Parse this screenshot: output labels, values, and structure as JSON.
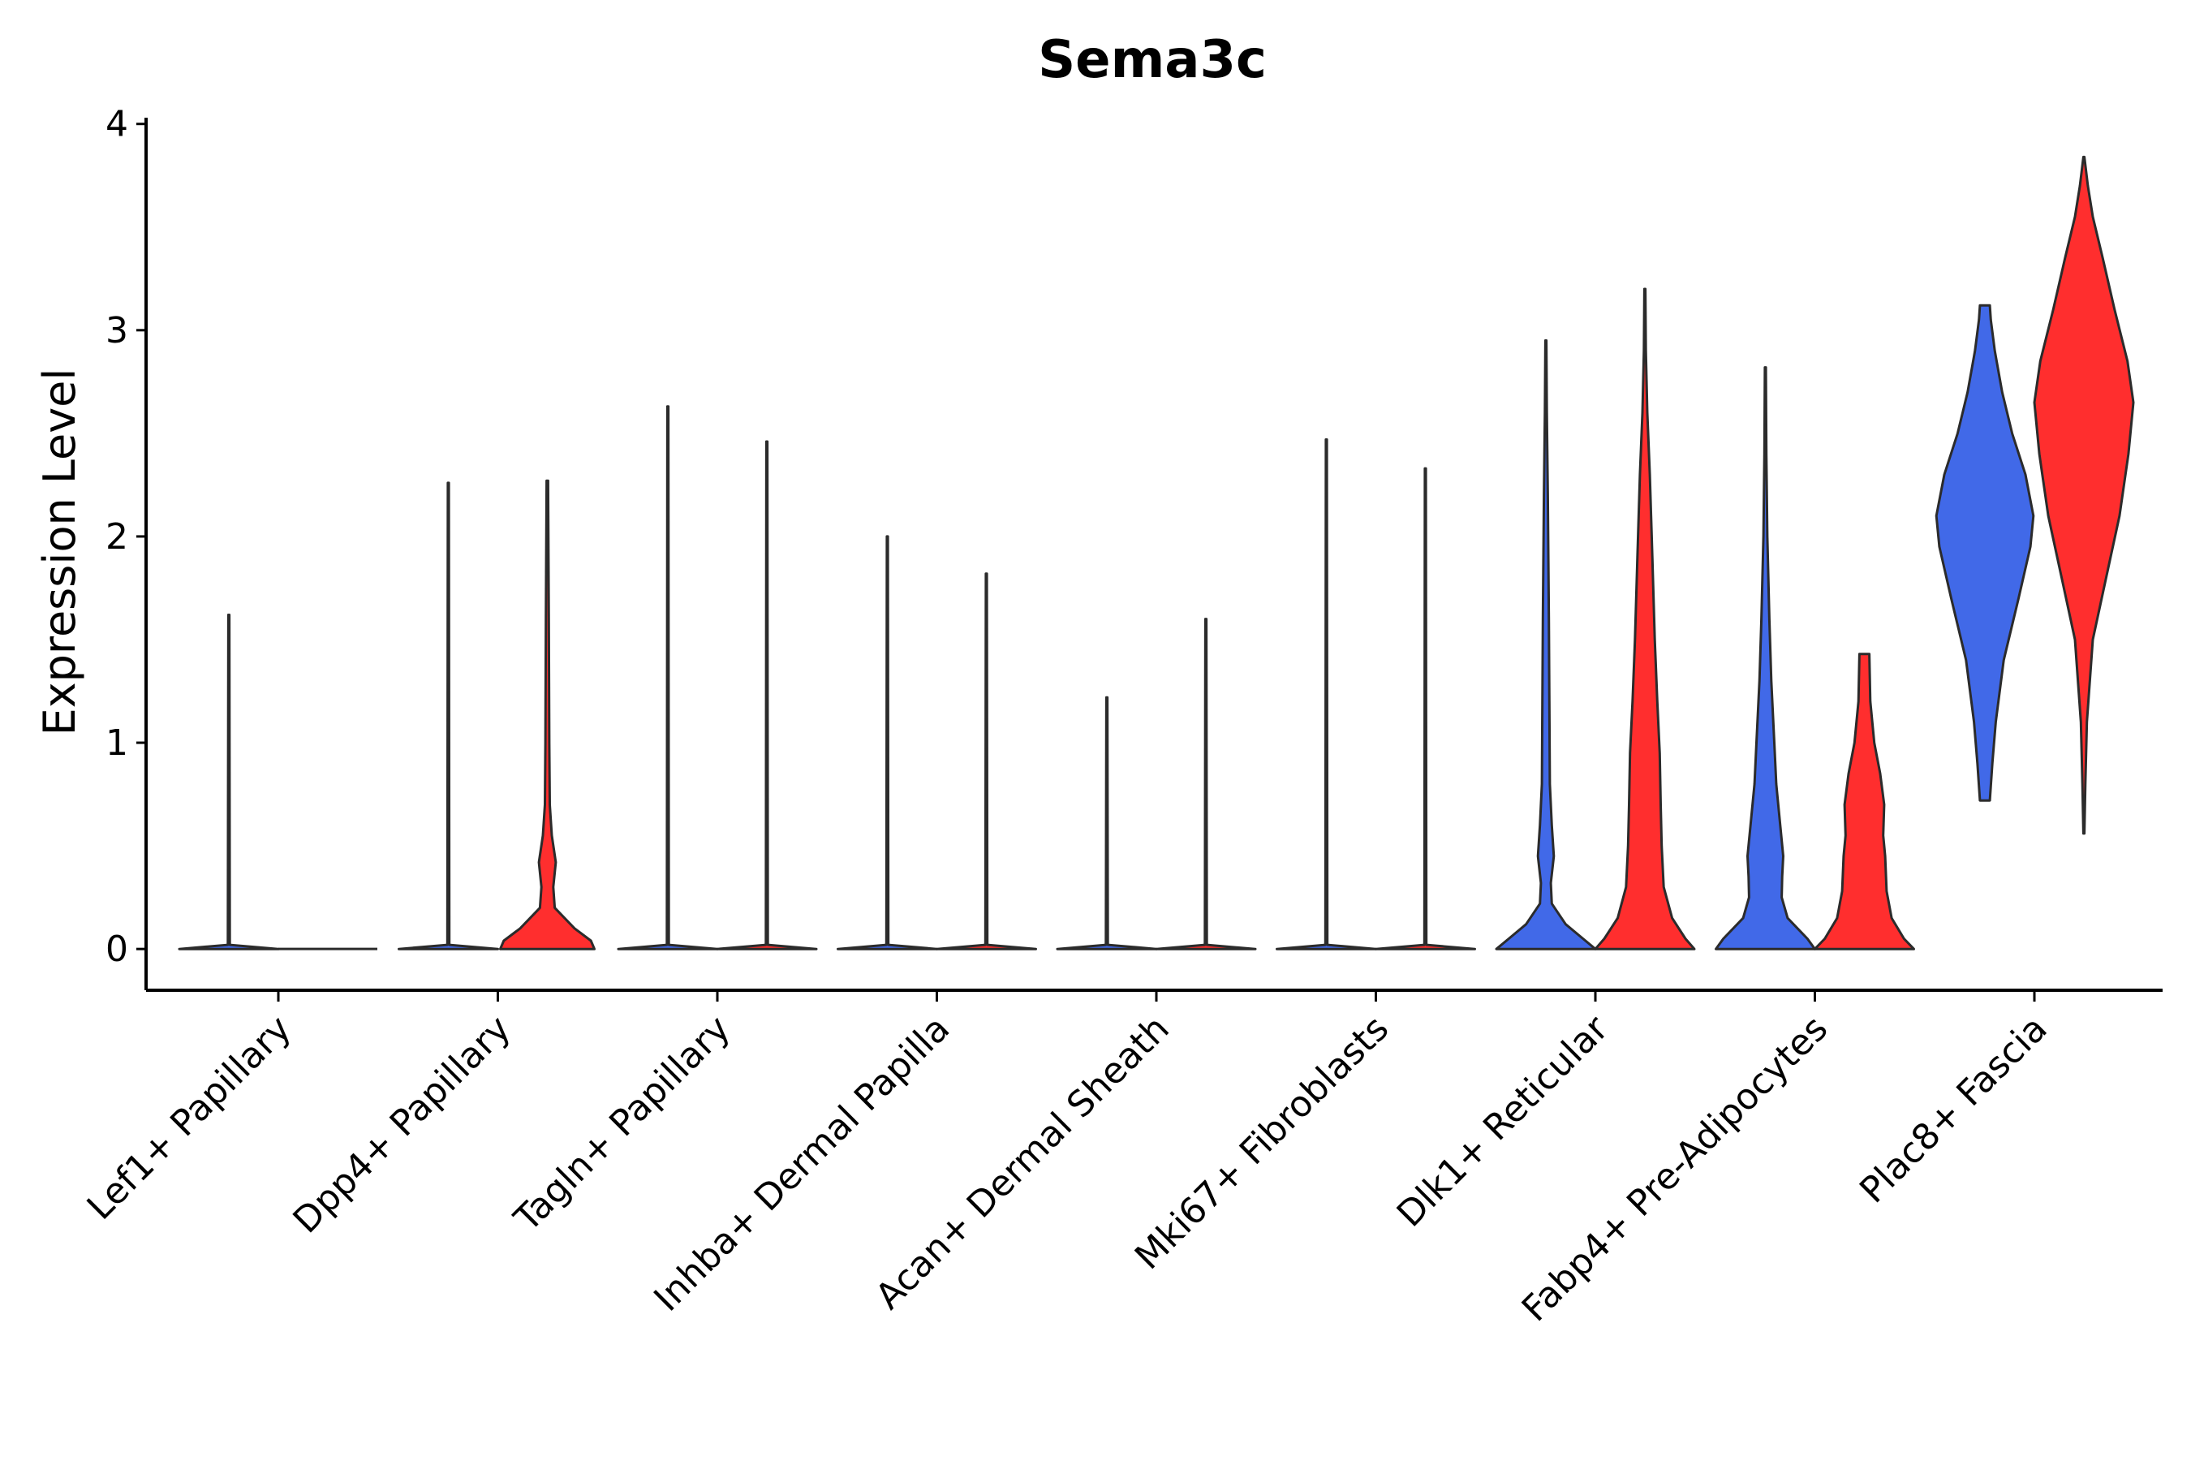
{
  "chart_data": {
    "type": "violin",
    "title": "Sema3c",
    "xlabel": "",
    "ylabel": "Expression Level",
    "ylim": [
      -0.2,
      4.05
    ],
    "yticks": [
      0,
      1,
      2,
      3,
      4
    ],
    "legend": "none",
    "colors": {
      "group1": "#4169E8",
      "group2": "#FF2E2E",
      "outline": "#2b2b2b"
    },
    "categories": [
      "Lef1+ Papillary",
      "Dpp4+ Papillary",
      "Tagln+ Papillary",
      "Inhba+ Dermal Papilla",
      "Acan+ Dermal Sheath",
      "Mki67+ Fibroblasts",
      "Dlk1+ Reticular",
      "Fabp4+ Pre-Adipocytes",
      "Plac8+ Fascia"
    ],
    "violins": [
      {
        "category": "Lef1+ Papillary",
        "group": "group1",
        "min": 0,
        "max": 1.62,
        "profile": [
          [
            0,
            1
          ],
          [
            0.02,
            0.02
          ],
          [
            1.62,
            0.01
          ]
        ]
      },
      {
        "category": "Lef1+ Papillary",
        "group": "group2",
        "min": 0,
        "max": 0,
        "profile": [
          [
            0,
            1
          ]
        ]
      },
      {
        "category": "Dpp4+ Papillary",
        "group": "group1",
        "min": 0,
        "max": 2.26,
        "profile": [
          [
            0,
            1
          ],
          [
            0.02,
            0.02
          ],
          [
            2.26,
            0.01
          ]
        ]
      },
      {
        "category": "Dpp4+ Papillary",
        "group": "group2",
        "min": 0,
        "max": 2.27,
        "profile": [
          [
            0,
            0.95
          ],
          [
            0.04,
            0.88
          ],
          [
            0.1,
            0.55
          ],
          [
            0.2,
            0.15
          ],
          [
            0.3,
            0.12
          ],
          [
            0.42,
            0.17
          ],
          [
            0.55,
            0.09
          ],
          [
            0.7,
            0.05
          ],
          [
            1.0,
            0.04
          ],
          [
            1.6,
            0.03
          ],
          [
            2.27,
            0.015
          ]
        ]
      },
      {
        "category": "Tagln+ Papillary",
        "group": "group1",
        "min": 0,
        "max": 2.63,
        "profile": [
          [
            0,
            1
          ],
          [
            0.02,
            0.02
          ],
          [
            2.63,
            0.01
          ]
        ]
      },
      {
        "category": "Tagln+ Papillary",
        "group": "group2",
        "min": 0,
        "max": 2.46,
        "profile": [
          [
            0,
            1
          ],
          [
            0.02,
            0.02
          ],
          [
            2.46,
            0.01
          ]
        ]
      },
      {
        "category": "Inhba+ Dermal Papilla",
        "group": "group1",
        "min": 0,
        "max": 2.0,
        "profile": [
          [
            0,
            1
          ],
          [
            0.02,
            0.02
          ],
          [
            2.0,
            0.01
          ]
        ]
      },
      {
        "category": "Inhba+ Dermal Papilla",
        "group": "group2",
        "min": 0,
        "max": 1.82,
        "profile": [
          [
            0,
            1
          ],
          [
            0.02,
            0.02
          ],
          [
            1.82,
            0.01
          ]
        ]
      },
      {
        "category": "Acan+ Dermal Sheath",
        "group": "group1",
        "min": 0,
        "max": 1.22,
        "profile": [
          [
            0,
            1
          ],
          [
            0.02,
            0.02
          ],
          [
            1.22,
            0.01
          ]
        ]
      },
      {
        "category": "Acan+ Dermal Sheath",
        "group": "group2",
        "min": 0,
        "max": 1.6,
        "profile": [
          [
            0,
            1
          ],
          [
            0.02,
            0.02
          ],
          [
            1.6,
            0.01
          ]
        ]
      },
      {
        "category": "Mki67+ Fibroblasts",
        "group": "group1",
        "min": 0,
        "max": 2.47,
        "profile": [
          [
            0,
            1
          ],
          [
            0.02,
            0.02
          ],
          [
            2.47,
            0.01
          ]
        ]
      },
      {
        "category": "Mki67+ Fibroblasts",
        "group": "group2",
        "min": 0,
        "max": 2.33,
        "profile": [
          [
            0,
            1
          ],
          [
            0.02,
            0.02
          ],
          [
            2.33,
            0.01
          ]
        ]
      },
      {
        "category": "Dlk1+ Reticular",
        "group": "group1",
        "min": 0,
        "max": 2.95,
        "profile": [
          [
            0,
            1
          ],
          [
            0.05,
            0.75
          ],
          [
            0.12,
            0.4
          ],
          [
            0.22,
            0.12
          ],
          [
            0.32,
            0.1
          ],
          [
            0.45,
            0.16
          ],
          [
            0.6,
            0.12
          ],
          [
            0.8,
            0.08
          ],
          [
            1.2,
            0.07
          ],
          [
            1.6,
            0.06
          ],
          [
            2.2,
            0.04
          ],
          [
            2.6,
            0.02
          ],
          [
            2.95,
            0.01
          ]
        ]
      },
      {
        "category": "Dlk1+ Reticular",
        "group": "group2",
        "min": 0,
        "max": 3.2,
        "profile": [
          [
            0,
            1
          ],
          [
            0.05,
            0.82
          ],
          [
            0.15,
            0.55
          ],
          [
            0.3,
            0.38
          ],
          [
            0.5,
            0.34
          ],
          [
            0.7,
            0.32
          ],
          [
            0.95,
            0.3
          ],
          [
            1.2,
            0.25
          ],
          [
            1.5,
            0.2
          ],
          [
            1.9,
            0.15
          ],
          [
            2.3,
            0.1
          ],
          [
            2.6,
            0.05
          ],
          [
            2.9,
            0.02
          ],
          [
            3.2,
            0.01
          ]
        ]
      },
      {
        "category": "Fabp4+ Pre-Adipocytes",
        "group": "group1",
        "min": 0,
        "max": 2.82,
        "profile": [
          [
            0,
            1
          ],
          [
            0.05,
            0.85
          ],
          [
            0.15,
            0.45
          ],
          [
            0.25,
            0.33
          ],
          [
            0.35,
            0.34
          ],
          [
            0.45,
            0.36
          ],
          [
            0.6,
            0.3
          ],
          [
            0.8,
            0.22
          ],
          [
            1.0,
            0.18
          ],
          [
            1.3,
            0.12
          ],
          [
            1.6,
            0.08
          ],
          [
            2.0,
            0.04
          ],
          [
            2.4,
            0.02
          ],
          [
            2.82,
            0.01
          ]
        ]
      },
      {
        "category": "Fabp4+ Pre-Adipocytes",
        "group": "group2",
        "min": 0,
        "max": 1.43,
        "profile": [
          [
            0,
            1
          ],
          [
            0.05,
            0.8
          ],
          [
            0.15,
            0.55
          ],
          [
            0.28,
            0.45
          ],
          [
            0.45,
            0.42
          ],
          [
            0.55,
            0.38
          ],
          [
            0.7,
            0.4
          ],
          [
            0.85,
            0.32
          ],
          [
            1.0,
            0.2
          ],
          [
            1.2,
            0.12
          ],
          [
            1.43,
            0.1
          ]
        ]
      },
      {
        "category": "Plac8+ Fascia",
        "group": "group1",
        "min": 0.72,
        "max": 3.12,
        "profile": [
          [
            0.72,
            0.1
          ],
          [
            0.9,
            0.15
          ],
          [
            1.1,
            0.22
          ],
          [
            1.4,
            0.38
          ],
          [
            1.7,
            0.68
          ],
          [
            1.95,
            0.92
          ],
          [
            2.1,
            0.98
          ],
          [
            2.3,
            0.82
          ],
          [
            2.5,
            0.55
          ],
          [
            2.7,
            0.35
          ],
          [
            2.9,
            0.2
          ],
          [
            3.05,
            0.12
          ],
          [
            3.12,
            0.1
          ]
        ]
      },
      {
        "category": "Plac8+ Fascia",
        "group": "group2",
        "min": 0.56,
        "max": 3.84,
        "profile": [
          [
            0.56,
            0.01
          ],
          [
            0.8,
            0.03
          ],
          [
            1.1,
            0.06
          ],
          [
            1.5,
            0.18
          ],
          [
            1.8,
            0.45
          ],
          [
            2.1,
            0.72
          ],
          [
            2.4,
            0.9
          ],
          [
            2.65,
            1.0
          ],
          [
            2.85,
            0.88
          ],
          [
            3.1,
            0.62
          ],
          [
            3.35,
            0.38
          ],
          [
            3.55,
            0.18
          ],
          [
            3.7,
            0.08
          ],
          [
            3.84,
            0.01
          ]
        ]
      }
    ]
  }
}
